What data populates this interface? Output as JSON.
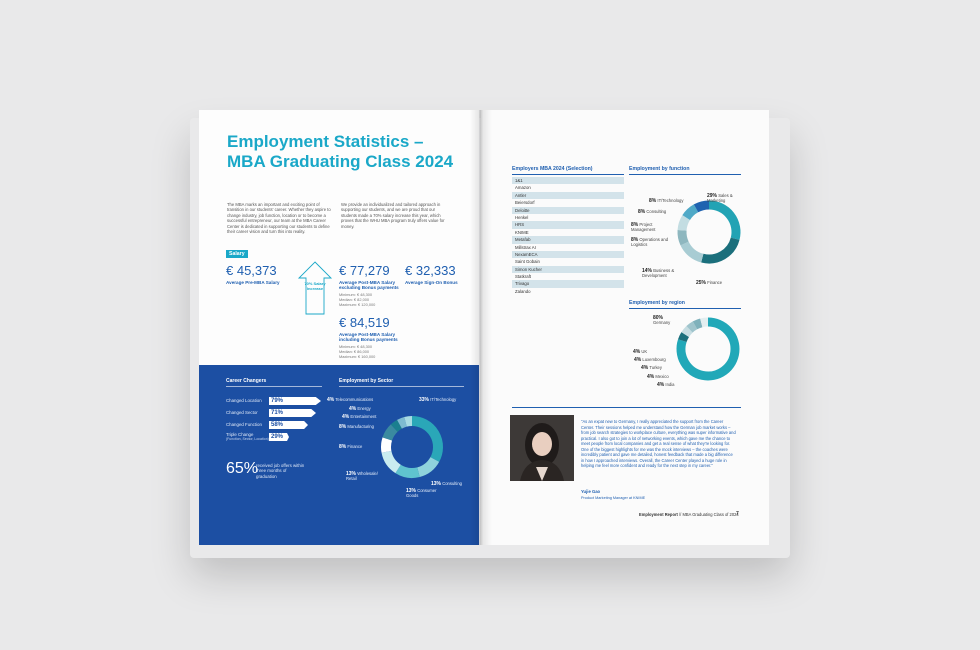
{
  "left": {
    "title_line1": "Employment Statistics –",
    "title_line2": "MBA Graduating Class 2024",
    "intro_col1": "The MBA marks an important and exciting point of transition in our students' career. Whether they aspire to change industry, job function, location or to become a successful entrepreneur, our team at the MBA Career Center is dedicated in supporting our students to define their career vision and turn this into reality.",
    "intro_col2": "We provide an individualized and tailored approach in supporting our students, and we are proud that our students made a 70% salary increase this year, which proves that the WHU MBA program truly offers value for money.",
    "salary_tag": "Salary",
    "pre_mba_value": "€ 45,373",
    "pre_mba_label": "Average Pre-MBA Salary",
    "increase_arrow": "70% Salary Increase",
    "post_value": "€ 77,279",
    "post_label": "Average Post-MBA Salary excluding Bonus payments",
    "post_min": "Minimum: € 48,300",
    "post_median": "Median: € 82,000",
    "post_max": "Maximum: € 120,000",
    "signon_value": "€ 32,333",
    "signon_label": "Average Sign-On Bonus",
    "post_bonus_value": "€ 84,519",
    "post_bonus_label": "Average Post-MBA Salary including Bonus payments",
    "post_bonus_min": "Minimum: € 48,300",
    "post_bonus_median": "Median: € 86,000",
    "post_bonus_max": "Maximum: € 160,000",
    "career_changers_title": "Career Changers",
    "changers": [
      {
        "label": "Changed Location",
        "value": "79%",
        "fraction": 0.79
      },
      {
        "label": "Changed Sector",
        "value": "71%",
        "fraction": 0.71
      },
      {
        "label": "Changed Function",
        "value": "58%",
        "fraction": 0.58
      },
      {
        "label": "Triple Change",
        "sublabel": "(Function, Sector, Location)",
        "value": "29%",
        "fraction": 0.29
      }
    ],
    "offers_value": "65%",
    "offers_label": "received job offers within three months of graduation",
    "sector_title": "Employment by Sector"
  },
  "right": {
    "employers_title": "Employers MBA 2024 (Selection)",
    "employers": [
      "1&1",
      "Amazon",
      "Antler",
      "Beiersdorf",
      "Deloitte",
      "Henkel",
      "HRS",
      "KNIME",
      "Metafab",
      "Millstrax AI",
      "NexamECA",
      "Saint Gobain",
      "Simon Kucher",
      "Statkraft",
      "Trivago",
      "Zalando"
    ],
    "function_title": "Employment by function",
    "region_title": "Employment by region",
    "quote": "\"As an expat new to Germany, I really appreciated the support from the Career Center. Their sessions helped me understand how the German job market works – from job search strategies to workplace culture, everything was super informative and practical. I also got to join a lot of networking events, which gave me the chance to meet people from local companies and get a real sense of what they're looking for. One of the biggest highlights for me was the mock interviews – the coaches were incredibly patient and gave me detailed, honest feedback that made a big difference in how I approached interviews. Overall, the Career Center played a huge role in helping me feel more confident and ready for the next step in my career.\"",
    "quote_name": "Yujie Gao",
    "quote_role": "Product Marketing Manager at KNIME",
    "footer_bold": "Employment Report",
    "footer_rest": " // MBA Graduating Class of 2024",
    "page_number": "7"
  },
  "chart_data": [
    {
      "type": "pie",
      "title": "Employment by Sector",
      "labels": [
        "IT/Technology",
        "Consulting",
        "Consumer Goods",
        "Wholesale/ Retail",
        "Finance",
        "Manufacturing",
        "Entertainment",
        "Energy",
        "Telecommunications"
      ],
      "values": [
        33,
        13,
        13,
        13,
        8,
        8,
        4,
        4,
        4
      ],
      "value_labels": [
        "33%",
        "13%",
        "13%",
        "13%",
        "8%",
        "8%",
        "4%",
        "4%",
        "4%"
      ],
      "colors": [
        "#2aa7b8",
        "#8fd3dc",
        "#5fc3cf",
        "#c9ecf0",
        "#ffffff",
        "#3a8aa0",
        "#1a7f8f",
        "#7dbbd0",
        "#a8dbe3"
      ]
    },
    {
      "type": "pie",
      "title": "Employment by function",
      "labels": [
        "Sales & Marketing",
        "Finance",
        "Business & Development",
        "Operations and Logistics",
        "Project Management",
        "Consulting",
        "IT/Technology"
      ],
      "values": [
        29,
        25,
        14,
        8,
        8,
        8,
        8
      ],
      "value_labels": [
        "29%",
        "25%",
        "14%",
        "8%",
        "8%",
        "8%",
        "8%"
      ],
      "colors": [
        "#22a3b4",
        "#1b6f7c",
        "#a8ccd3",
        "#8eb7bf",
        "#c3dde2",
        "#4fa9c7",
        "#1f63b0"
      ]
    },
    {
      "type": "pie",
      "title": "Employment by region",
      "labels": [
        "Germany",
        "UK",
        "Luxembourg",
        "Turkey",
        "Mexico",
        "India"
      ],
      "values": [
        80,
        4,
        4,
        4,
        4,
        4
      ],
      "value_labels": [
        "80%",
        "4%",
        "4%",
        "4%",
        "4%",
        "4%"
      ],
      "colors": [
        "#21a8b8",
        "#1b6f7c",
        "#c6dde2",
        "#9fc4cc",
        "#7fb1bb",
        "#e3eef0"
      ]
    }
  ]
}
